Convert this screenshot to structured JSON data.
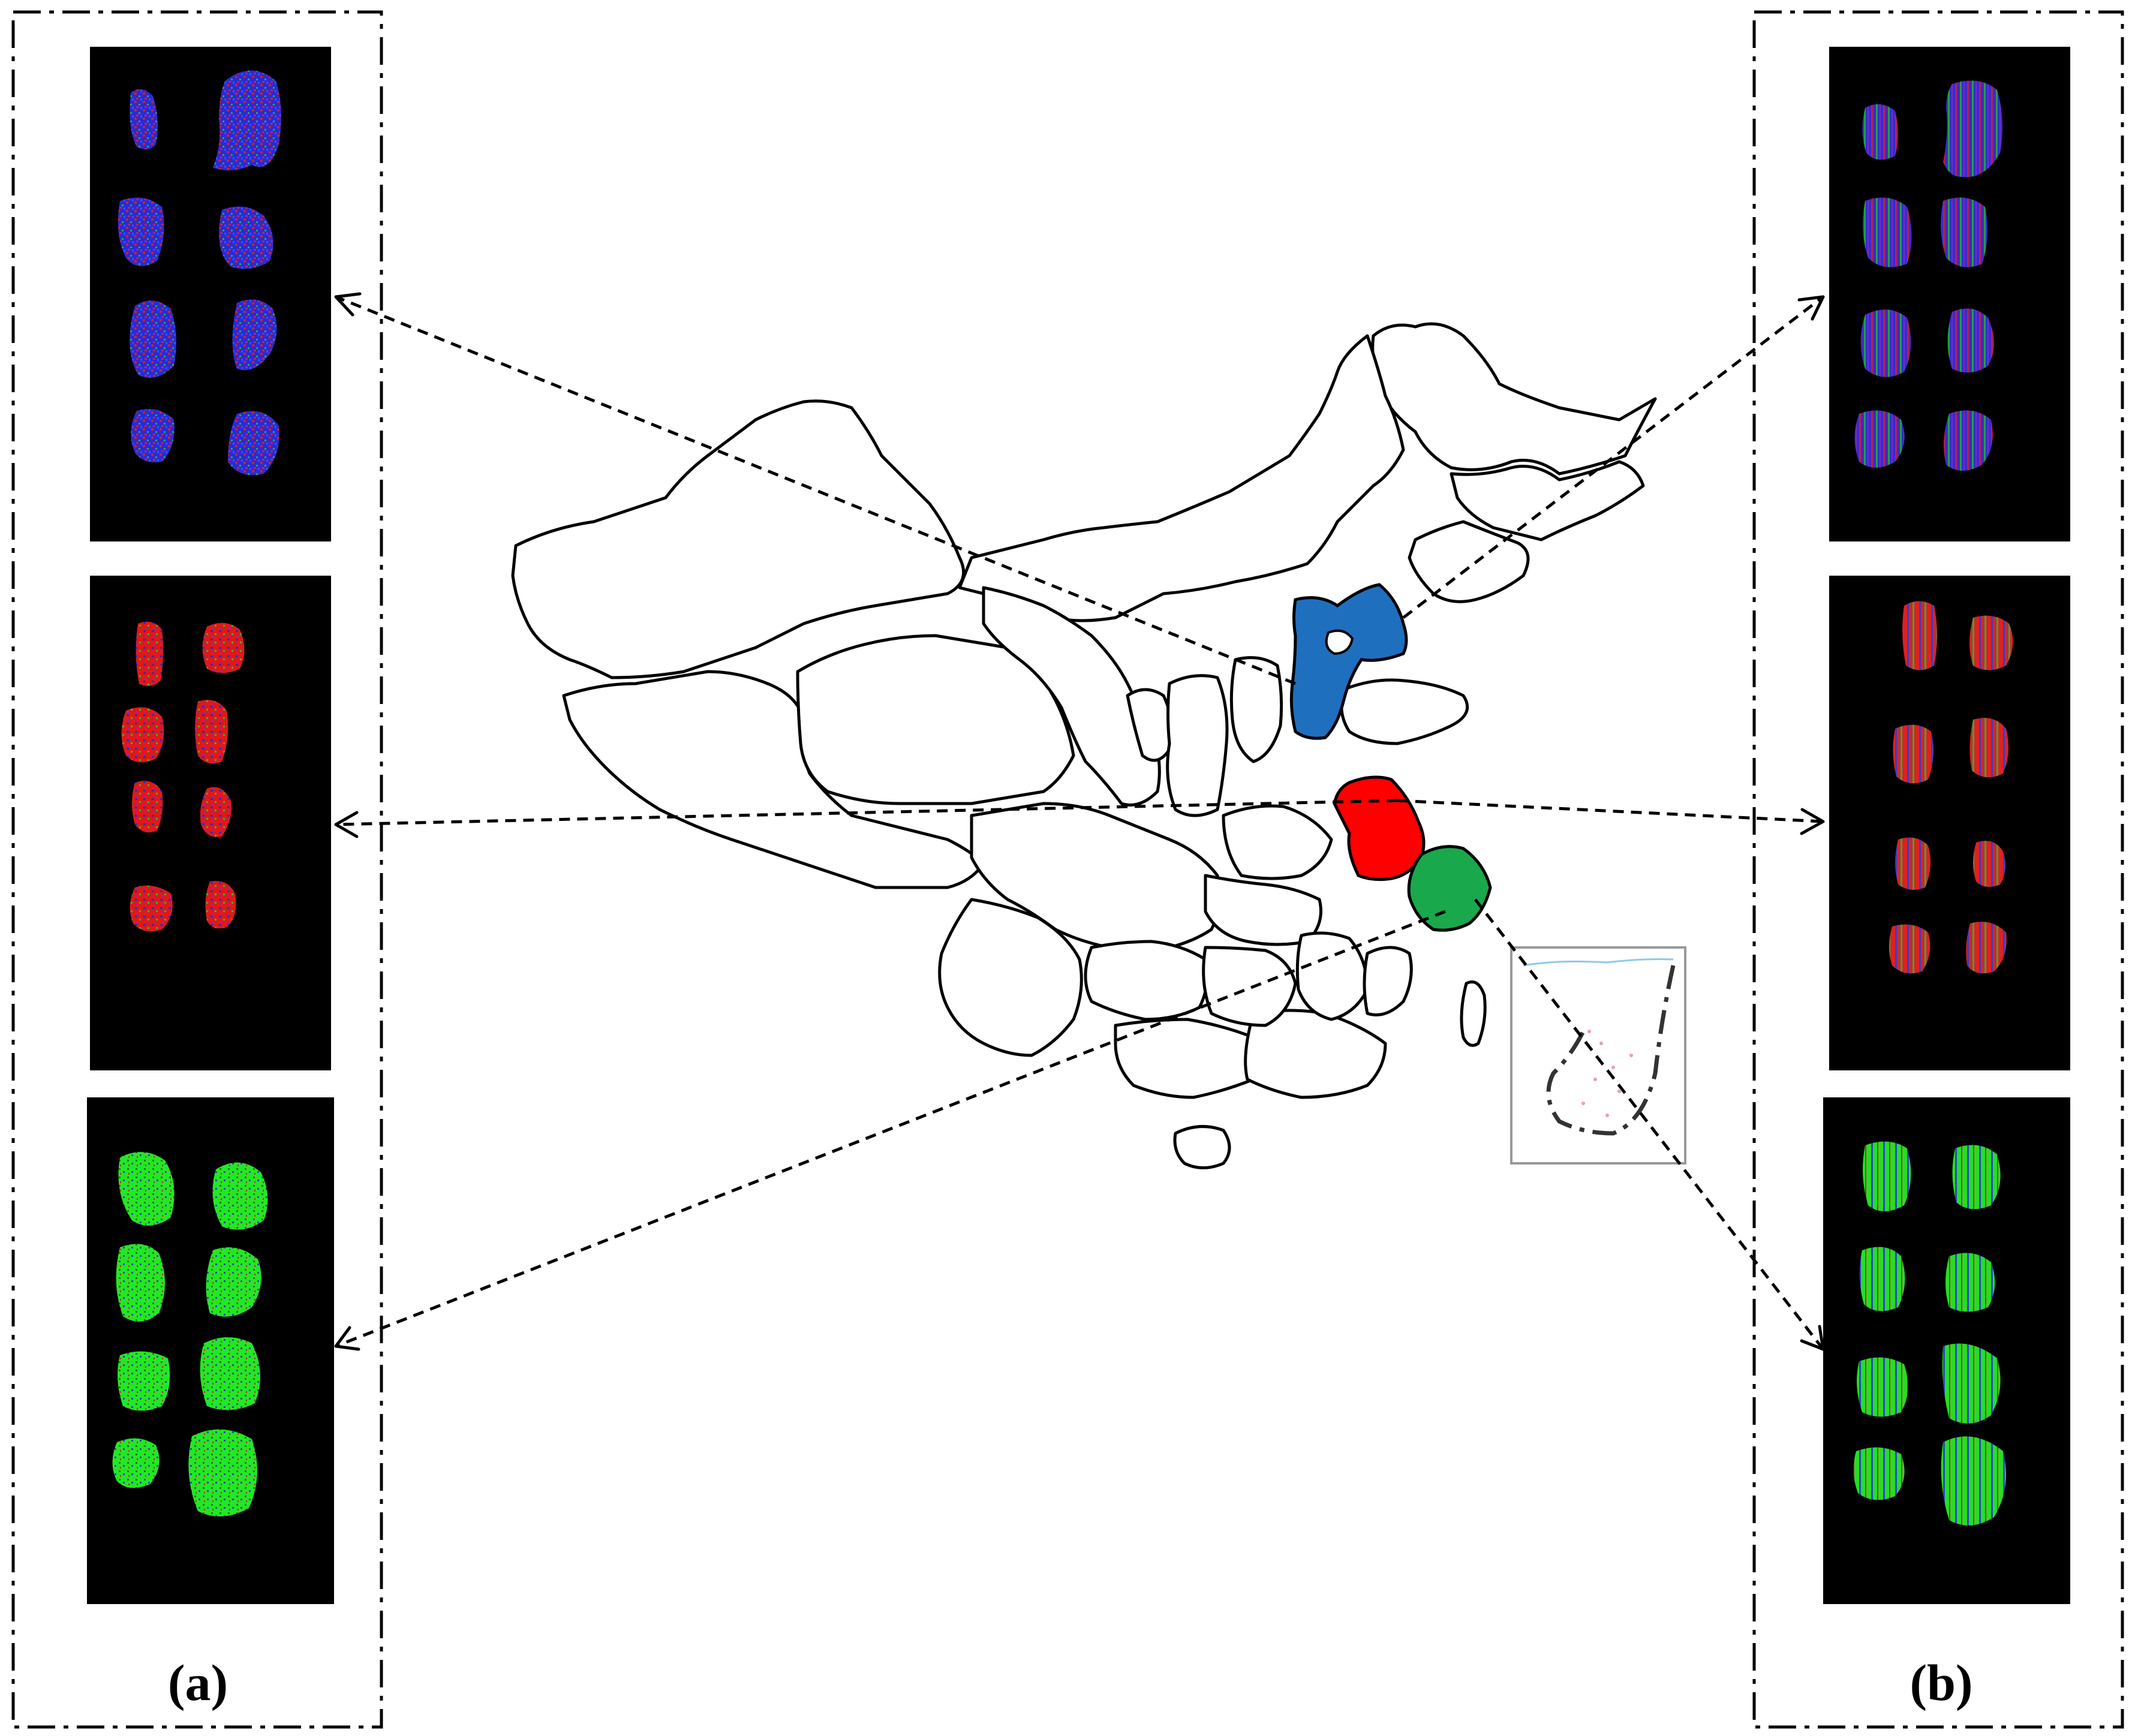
{
  "panels": {
    "left_label": "(a)",
    "right_label": "(b)"
  },
  "colors": {
    "blue_region": "#1f6fbf",
    "red_region": "#ff0000",
    "green_region": "#1aa84c",
    "image_background": "#000000",
    "frame": "#000000"
  },
  "image_sets": [
    {
      "set": "blue",
      "seed_count": 8,
      "dominant": "blue"
    },
    {
      "set": "red",
      "seed_count": 8,
      "dominant": "red"
    },
    {
      "set": "green",
      "seed_count": 8,
      "dominant": "green"
    }
  ],
  "inset": {
    "present": true
  }
}
